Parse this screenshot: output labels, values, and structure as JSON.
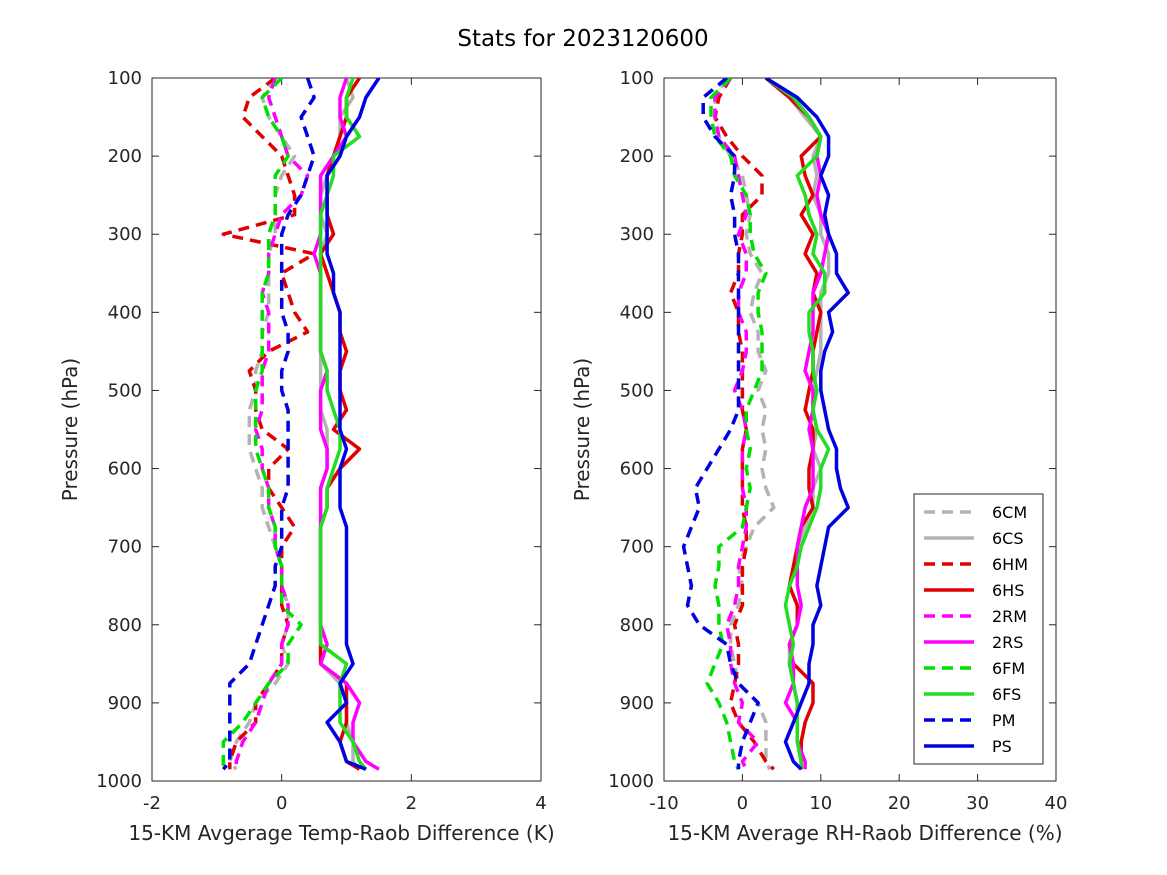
{
  "title": "Stats for 2023120600",
  "legend_position": "bottom-right of right panel",
  "chart_data": [
    {
      "type": "line",
      "xlabel": "15-KM Avgerage Temp-Raob Difference (K)",
      "ylabel": "Pressure (hPa)",
      "xlim": [
        -2,
        4
      ],
      "ylim": [
        100,
        1000
      ],
      "y_reversed": true,
      "grid": false,
      "xticks": [
        "-2",
        "0",
        "2",
        "4"
      ],
      "yticks": [
        "100",
        "200",
        "300",
        "400",
        "500",
        "600",
        "700",
        "800",
        "900",
        "1000"
      ],
      "pressure": [
        100,
        125,
        150,
        175,
        200,
        225,
        250,
        275,
        300,
        325,
        350,
        375,
        400,
        425,
        450,
        475,
        500,
        525,
        550,
        575,
        600,
        625,
        650,
        675,
        700,
        725,
        750,
        775,
        800,
        825,
        850,
        875,
        900,
        925,
        950,
        975,
        985
      ],
      "series": [
        {
          "name": "6CM",
          "color": "#b3b3b3",
          "dash": true,
          "values": [
            -0.1,
            -0.3,
            -0.2,
            0.0,
            0.2,
            0.0,
            -0.1,
            -0.1,
            -0.1,
            -0.2,
            -0.2,
            -0.2,
            -0.2,
            -0.3,
            -0.3,
            -0.4,
            -0.4,
            -0.5,
            -0.5,
            -0.5,
            -0.4,
            -0.3,
            -0.3,
            -0.2,
            -0.1,
            0.0,
            0.0,
            0.1,
            0.1,
            0.0,
            0.1,
            -0.1,
            -0.4,
            -0.5,
            -0.7,
            -0.8,
            -0.7
          ]
        },
        {
          "name": "6CS",
          "color": "#b3b3b3",
          "dash": false,
          "values": [
            1.0,
            1.1,
            0.9,
            0.9,
            0.8,
            0.7,
            0.6,
            0.6,
            0.7,
            0.6,
            0.6,
            0.6,
            0.6,
            0.6,
            0.6,
            0.6,
            0.6,
            0.6,
            0.7,
            0.7,
            0.7,
            0.6,
            0.6,
            0.6,
            0.6,
            0.6,
            0.6,
            0.6,
            0.6,
            0.6,
            0.6,
            0.9,
            1.0,
            1.0,
            1.1,
            1.1,
            1.2
          ]
        },
        {
          "name": "6HM",
          "color": "#e00000",
          "dash": true,
          "values": [
            -0.1,
            -0.5,
            -0.6,
            -0.3,
            0.0,
            0.1,
            0.2,
            0.2,
            -0.9,
            0.5,
            0.0,
            0.1,
            0.2,
            0.4,
            -0.2,
            -0.5,
            -0.4,
            -0.4,
            -0.3,
            0.1,
            -0.2,
            -0.2,
            0.0,
            0.2,
            0.0,
            0.0,
            0.0,
            0.0,
            0.1,
            0.0,
            0.0,
            -0.2,
            -0.4,
            -0.4,
            -0.7,
            -0.8,
            -0.8
          ]
        },
        {
          "name": "6HS",
          "color": "#e00000",
          "dash": false,
          "values": [
            1.2,
            1.0,
            1.0,
            0.9,
            0.8,
            0.7,
            0.7,
            0.7,
            0.8,
            0.6,
            0.7,
            0.8,
            0.9,
            0.9,
            1.0,
            0.9,
            0.9,
            1.0,
            0.8,
            1.2,
            0.9,
            0.7,
            0.7,
            0.6,
            0.6,
            0.6,
            0.6,
            0.6,
            0.6,
            0.6,
            0.6,
            1.0,
            1.0,
            1.0,
            0.9,
            1.0,
            1.2
          ]
        },
        {
          "name": "2RM",
          "color": "#ff00ff",
          "dash": true,
          "values": [
            -0.1,
            -0.2,
            -0.1,
            0.0,
            0.1,
            0.4,
            0.3,
            0.0,
            -0.1,
            -0.2,
            -0.2,
            -0.3,
            -0.2,
            -0.2,
            -0.2,
            -0.3,
            -0.3,
            -0.3,
            -0.4,
            -0.3,
            -0.3,
            -0.2,
            -0.2,
            -0.1,
            -0.1,
            0.0,
            0.0,
            0.1,
            0.1,
            0.0,
            0.0,
            -0.2,
            -0.3,
            -0.4,
            -0.6,
            -0.7,
            -0.7
          ]
        },
        {
          "name": "2RS",
          "color": "#ff00ff",
          "dash": false,
          "values": [
            1.0,
            0.9,
            0.9,
            1.0,
            0.8,
            0.6,
            0.6,
            0.6,
            0.6,
            0.5,
            0.6,
            0.6,
            0.6,
            0.6,
            0.6,
            0.7,
            0.6,
            0.6,
            0.6,
            0.7,
            0.7,
            0.6,
            0.6,
            0.6,
            0.6,
            0.6,
            0.6,
            0.6,
            0.6,
            0.7,
            0.6,
            1.0,
            1.2,
            1.1,
            1.1,
            1.3,
            1.5
          ]
        },
        {
          "name": "6FM",
          "color": "#00e000",
          "dash": true,
          "values": [
            0.0,
            -0.3,
            -0.2,
            0.0,
            0.1,
            -0.1,
            -0.1,
            -0.1,
            -0.2,
            -0.2,
            -0.2,
            -0.3,
            -0.3,
            -0.3,
            -0.3,
            -0.3,
            -0.4,
            -0.4,
            -0.4,
            -0.4,
            -0.3,
            -0.2,
            -0.2,
            -0.1,
            -0.1,
            0.0,
            0.0,
            0.0,
            0.3,
            0.1,
            0.1,
            -0.2,
            -0.4,
            -0.6,
            -0.9,
            -0.9,
            -0.9
          ]
        },
        {
          "name": "6FS",
          "color": "#22dd22",
          "dash": false,
          "values": [
            1.1,
            1.0,
            1.0,
            1.2,
            0.8,
            0.8,
            0.7,
            0.6,
            0.6,
            0.6,
            0.6,
            0.6,
            0.6,
            0.6,
            0.6,
            0.7,
            0.7,
            0.8,
            0.9,
            0.9,
            0.8,
            0.7,
            0.7,
            0.6,
            0.6,
            0.6,
            0.6,
            0.6,
            0.6,
            0.6,
            1.0,
            0.9,
            0.9,
            0.9,
            1.1,
            1.2,
            1.3
          ]
        },
        {
          "name": "PM",
          "color": "#0000e0",
          "dash": true,
          "values": [
            0.4,
            0.5,
            0.3,
            0.4,
            0.5,
            0.4,
            0.3,
            0.1,
            0.0,
            0.0,
            0.0,
            0.0,
            0.0,
            0.1,
            0.1,
            0.0,
            0.0,
            0.1,
            0.1,
            0.1,
            0.1,
            0.1,
            0.0,
            0.0,
            0.0,
            -0.1,
            -0.1,
            -0.2,
            -0.3,
            -0.4,
            -0.5,
            -0.8,
            -0.8,
            -0.8,
            -0.8,
            -0.8,
            -0.9
          ]
        },
        {
          "name": "PS",
          "color": "#0000e0",
          "dash": false,
          "values": [
            1.5,
            1.3,
            1.2,
            1.0,
            0.9,
            0.7,
            0.7,
            0.7,
            0.7,
            0.7,
            0.8,
            0.8,
            0.9,
            0.9,
            0.9,
            0.9,
            0.9,
            0.9,
            0.9,
            1.0,
            0.9,
            0.9,
            0.9,
            1.0,
            1.0,
            1.0,
            1.0,
            1.0,
            1.0,
            1.0,
            1.1,
            0.9,
            1.0,
            0.7,
            0.9,
            1.0,
            1.3
          ]
        }
      ]
    },
    {
      "type": "line",
      "xlabel": "15-KM Average RH-Raob Difference (%)",
      "ylabel": "Pressure (hPa)",
      "xlim": [
        -10,
        40
      ],
      "ylim": [
        100,
        1000
      ],
      "y_reversed": true,
      "grid": false,
      "xticks": [
        "-10",
        "0",
        "10",
        "20",
        "30",
        "40"
      ],
      "yticks": [
        "100",
        "200",
        "300",
        "400",
        "500",
        "600",
        "700",
        "800",
        "900",
        "1000"
      ],
      "pressure": [
        100,
        125,
        150,
        175,
        200,
        225,
        250,
        275,
        300,
        325,
        350,
        375,
        400,
        425,
        450,
        475,
        500,
        525,
        550,
        575,
        600,
        625,
        650,
        675,
        700,
        725,
        750,
        775,
        800,
        825,
        850,
        875,
        900,
        925,
        950,
        975,
        985
      ],
      "series": [
        {
          "name": "6CM",
          "color": "#b3b3b3",
          "dash": true,
          "values": [
            -2.0,
            -3.5,
            -3.5,
            -3.0,
            -1.5,
            0.0,
            0.5,
            1.0,
            0.5,
            1.0,
            2.5,
            1.5,
            1.0,
            2.0,
            2.0,
            3.0,
            2.0,
            3.0,
            2.5,
            3.0,
            2.5,
            3.0,
            4.0,
            1.5,
            0.5,
            -0.5,
            0.0,
            -0.5,
            -1.5,
            -1.5,
            -1.0,
            -0.5,
            2.0,
            3.0,
            3.0,
            3.0,
            3.5
          ]
        },
        {
          "name": "6CS",
          "color": "#b3b3b3",
          "dash": false,
          "values": [
            3.0,
            6.0,
            8.0,
            10.0,
            9.0,
            9.5,
            9.0,
            10.0,
            10.0,
            11.0,
            11.0,
            10.0,
            10.0,
            10.0,
            10.0,
            9.5,
            9.0,
            9.0,
            9.5,
            9.0,
            10.0,
            9.0,
            9.0,
            8.0,
            7.0,
            7.0,
            6.0,
            7.0,
            7.0,
            6.0,
            6.0,
            6.5,
            7.0,
            7.0,
            7.0,
            7.5,
            7.5
          ]
        },
        {
          "name": "6HM",
          "color": "#e00000",
          "dash": true,
          "values": [
            -1.5,
            -3.0,
            -3.5,
            -2.0,
            0.0,
            2.5,
            2.5,
            0.0,
            0.0,
            -0.5,
            -0.5,
            -1.5,
            -0.5,
            -0.5,
            0.0,
            0.0,
            0.0,
            0.0,
            0.5,
            0.0,
            0.0,
            0.0,
            0.0,
            0.5,
            0.5,
            0.0,
            0.0,
            0.0,
            -1.0,
            -0.5,
            -0.5,
            -1.0,
            -1.5,
            -0.5,
            1.5,
            3.0,
            4.0
          ]
        },
        {
          "name": "6HS",
          "color": "#e00000",
          "dash": false,
          "values": [
            3.0,
            6.0,
            8.5,
            10.0,
            7.5,
            8.0,
            9.0,
            7.5,
            9.0,
            8.0,
            9.5,
            9.0,
            10.0,
            9.5,
            9.0,
            9.0,
            8.5,
            8.0,
            9.0,
            9.0,
            8.5,
            8.5,
            9.0,
            7.5,
            7.0,
            6.5,
            6.0,
            7.0,
            7.0,
            6.0,
            6.5,
            9.0,
            9.0,
            8.0,
            7.5,
            7.5,
            7.5
          ]
        },
        {
          "name": "2RM",
          "color": "#ff00ff",
          "dash": true,
          "values": [
            -1.5,
            -3.5,
            -3.5,
            -3.0,
            -1.0,
            -0.5,
            0.0,
            0.5,
            -0.5,
            0.5,
            0.5,
            -0.5,
            -0.5,
            0.5,
            0.5,
            0.0,
            -1.0,
            0.0,
            0.5,
            0.0,
            0.0,
            0.0,
            0.5,
            0.5,
            0.0,
            -0.5,
            -0.5,
            -1.0,
            -2.0,
            -1.5,
            -1.5,
            -1.0,
            0.0,
            -0.5,
            2.0,
            0.0,
            0.5
          ]
        },
        {
          "name": "2RS",
          "color": "#ff00ff",
          "dash": false,
          "values": [
            3.0,
            6.5,
            8.5,
            10.0,
            9.5,
            10.0,
            9.5,
            10.0,
            11.0,
            10.5,
            10.0,
            9.0,
            9.0,
            9.0,
            8.5,
            8.0,
            9.0,
            9.0,
            8.5,
            9.0,
            9.0,
            9.0,
            8.0,
            7.5,
            7.0,
            7.0,
            7.0,
            7.5,
            7.0,
            6.0,
            6.5,
            6.5,
            5.5,
            7.0,
            7.0,
            8.0,
            8.0
          ]
        },
        {
          "name": "6FM",
          "color": "#00e000",
          "dash": true,
          "values": [
            -1.5,
            -4.0,
            -4.0,
            -3.5,
            -1.5,
            -1.0,
            0.5,
            1.0,
            1.0,
            1.5,
            3.0,
            2.0,
            2.0,
            2.5,
            2.5,
            2.5,
            1.5,
            0.5,
            0.5,
            1.0,
            0.5,
            1.0,
            0.5,
            0.0,
            -3.0,
            -3.0,
            -3.5,
            -3.0,
            -3.0,
            -2.5,
            -3.5,
            -4.5,
            -3.0,
            -2.0,
            -1.5,
            -1.0,
            -0.5
          ]
        },
        {
          "name": "6FS",
          "color": "#22dd22",
          "dash": false,
          "values": [
            3.0,
            6.5,
            8.5,
            10.0,
            9.5,
            7.0,
            8.0,
            8.5,
            9.5,
            9.0,
            10.5,
            10.5,
            8.5,
            8.5,
            9.0,
            9.0,
            9.5,
            9.0,
            9.5,
            11.0,
            10.0,
            10.0,
            9.5,
            8.5,
            7.5,
            7.0,
            6.0,
            5.5,
            6.0,
            6.5,
            6.0,
            6.5,
            7.0,
            7.0,
            7.0,
            7.5,
            7.5
          ]
        },
        {
          "name": "PM",
          "color": "#0000e0",
          "dash": true,
          "values": [
            -2.0,
            -5.0,
            -5.0,
            -3.5,
            -1.0,
            -1.0,
            -1.5,
            -1.0,
            -1.0,
            -0.5,
            -0.5,
            -0.5,
            -0.5,
            -0.5,
            -0.5,
            -0.5,
            -0.5,
            -0.5,
            -1.5,
            -3.0,
            -4.5,
            -6.0,
            -5.5,
            -6.5,
            -7.5,
            -7.0,
            -6.5,
            -7.0,
            -5.5,
            -2.0,
            -1.5,
            -0.5,
            2.0,
            1.0,
            0.0,
            -0.5,
            -0.5
          ]
        },
        {
          "name": "PS",
          "color": "#0000e0",
          "dash": false,
          "values": [
            3.0,
            7.0,
            9.5,
            11.0,
            11.0,
            10.0,
            11.0,
            10.5,
            11.0,
            12.0,
            12.0,
            13.5,
            11.0,
            11.5,
            10.5,
            10.0,
            10.0,
            10.5,
            11.0,
            12.0,
            12.0,
            12.5,
            13.5,
            11.0,
            10.5,
            10.0,
            9.5,
            10.0,
            9.0,
            9.0,
            8.5,
            8.5,
            7.5,
            6.5,
            5.5,
            6.5,
            7.5
          ]
        }
      ]
    }
  ]
}
